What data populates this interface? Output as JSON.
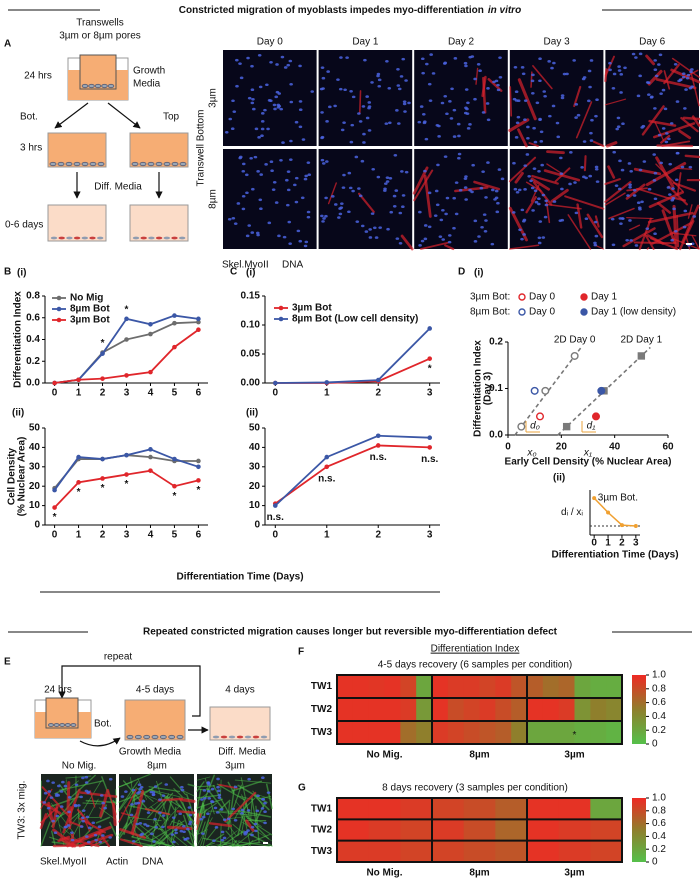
{
  "figure": {
    "title": "Constricted migration of myoblasts impedes myo-differentiation",
    "title_italic": "in vitro",
    "title2": "Repeated constricted migration causes longer but reversible myo-differentiation defect",
    "shared_xlabel": "Differentiation Time (Days)"
  },
  "panel_A": {
    "label": "A",
    "schematic": {
      "transwells": "Transwells",
      "pores": "3µm or 8µm pores",
      "t1": "24 hrs",
      "growth": "Growth",
      "media": "Media",
      "bot": "Bot.",
      "top": "Top",
      "t2": "3 hrs",
      "diff": "Diff. Media",
      "t3": "0-6 days"
    },
    "row_title": "Transwell Bottom",
    "rows": [
      "3µm",
      "8µm"
    ],
    "columns": [
      "Day 0",
      "Day 1",
      "Day 2",
      "Day 3",
      "Day 6"
    ],
    "stain_red": "Skel.MyoII",
    "stain_blue": "DNA"
  },
  "panel_E": {
    "label": "E",
    "repeat": "repeat",
    "t1": "24 hrs",
    "t2": "4-5 days",
    "t3": "4 days",
    "bot": "Bot.",
    "growth": "Growth Media",
    "diff": "Diff. Media",
    "columns": [
      "No Mig.",
      "8µm",
      "3µm"
    ],
    "row_label": "TW3: 3x mig.",
    "stain_red": "Skel.MyoII",
    "stain_green": "Actin",
    "stain_blue": "DNA"
  },
  "chart_data": [
    {
      "type": "line",
      "panel": "B",
      "sublabel": "(i)",
      "ylabel": "Differentiation Index",
      "x": [
        0,
        1,
        2,
        3,
        4,
        5,
        6
      ],
      "xlim": [
        -0.4,
        6.4
      ],
      "xticks": [
        0,
        1,
        2,
        3,
        4,
        5,
        6
      ],
      "ylim": [
        0,
        0.8
      ],
      "yticks": [
        {
          "value": 0,
          "label": "0.0"
        },
        0.2,
        0.4,
        0.6,
        0.8
      ],
      "legend": true,
      "series": [
        {
          "name": "No Mig",
          "color": "#6d6d6d",
          "values": [
            0,
            0.03,
            0.28,
            0.4,
            0.45,
            0.55,
            0.56
          ]
        },
        {
          "name": "8µm Bot",
          "color": "#3b57a6",
          "values": [
            0,
            0.03,
            0.27,
            0.59,
            0.54,
            0.62,
            0.59
          ]
        },
        {
          "name": "3µm Bot",
          "color": "#e0262b",
          "values": [
            0,
            0.03,
            0.04,
            0.07,
            0.1,
            0.33,
            0.49
          ]
        }
      ],
      "significance": [
        null,
        null,
        "*",
        "*",
        null,
        null,
        null
      ]
    },
    {
      "type": "line",
      "sublabel": "(ii)",
      "ylabel": [
        "Cell Density",
        "(% Nuclear Area)"
      ],
      "x": [
        0,
        1,
        2,
        3,
        4,
        5,
        6
      ],
      "xlim": [
        -0.4,
        6.4
      ],
      "xticks": [
        0,
        1,
        2,
        3,
        4,
        5,
        6
      ],
      "ylim": [
        0,
        50
      ],
      "yticks": [
        0,
        10,
        20,
        30,
        40,
        50
      ],
      "legend": false,
      "series": [
        {
          "color": "#6d6d6d",
          "values": [
            19,
            34,
            34,
            36,
            35,
            33,
            33
          ]
        },
        {
          "color": "#3b57a6",
          "values": [
            18,
            35,
            34,
            36,
            39,
            34,
            30
          ]
        },
        {
          "color": "#e0262b",
          "values": [
            9,
            22,
            24,
            26,
            28,
            20,
            23
          ]
        }
      ],
      "significance": [
        "*",
        "*",
        "*",
        "*",
        null,
        "*",
        "*"
      ]
    },
    {
      "type": "line",
      "panel": "C",
      "sublabel": "(i)",
      "x": [
        0,
        1,
        2,
        3
      ],
      "xlim": [
        -0.2,
        3.2
      ],
      "xticks": [
        0,
        1,
        2,
        3
      ],
      "ylim": [
        0,
        0.15
      ],
      "yticks": [
        {
          "value": 0,
          "label": "0.00"
        },
        {
          "value": 0.05,
          "label": "0.05"
        },
        {
          "value": 0.1,
          "label": "0.10"
        },
        {
          "value": 0.15,
          "label": "0.15"
        }
      ],
      "legend": true,
      "series": [
        {
          "name": "3µm Bot",
          "color": "#e0262b",
          "values": [
            0,
            0,
            0.003,
            0.042
          ]
        },
        {
          "name": "8µm Bot (Low cell density)",
          "color": "#3b57a6",
          "values": [
            0,
            0.001,
            0.005,
            0.094
          ]
        }
      ],
      "significance": [
        null,
        null,
        null,
        "*"
      ]
    },
    {
      "type": "line",
      "sublabel": "(ii)",
      "x": [
        0,
        1,
        2,
        3
      ],
      "xlim": [
        -0.2,
        3.2
      ],
      "xticks": [
        0,
        1,
        2,
        3
      ],
      "ylim": [
        0,
        50
      ],
      "yticks": [
        0,
        10,
        20,
        30,
        40,
        50
      ],
      "legend": false,
      "series": [
        {
          "color": "#e0262b",
          "values": [
            11,
            30,
            41,
            40
          ]
        },
        {
          "color": "#3b57a6",
          "values": [
            10,
            35,
            46,
            45
          ]
        }
      ],
      "significance": [
        "n.s.",
        "n.s.",
        "n.s.",
        "n.s."
      ]
    },
    {
      "type": "scatter",
      "panel": "D",
      "sublabel": "(i)",
      "ylabel": [
        "Differentiation Index",
        "(Day 3)"
      ],
      "xlabel": "Early Cell Density (% Nuclear Area)",
      "xlim": [
        0,
        60
      ],
      "xticks": [
        0,
        20,
        40,
        60
      ],
      "ylim": [
        0,
        0.2
      ],
      "yticks": [
        {
          "value": 0,
          "label": "0.0"
        },
        0.1,
        0.2
      ],
      "legend_groups": [
        {
          "label": "3µm Bot:",
          "series": [
            {
              "name": "Day 0",
              "color": "#e0262b",
              "filled": false,
              "x": [
                12
              ],
              "values": [
                0.04
              ]
            },
            {
              "name": "Day 1",
              "color": "#e0262b",
              "filled": true,
              "x": [
                33
              ],
              "values": [
                0.04
              ]
            }
          ]
        },
        {
          "label": "8µm Bot:",
          "series": [
            {
              "name": "Day 0",
              "color": "#3b57a6",
              "filled": false,
              "x": [
                10
              ],
              "values": [
                0.095
              ]
            },
            {
              "name": "Day 1 (low density)",
              "color": "#3b57a6",
              "filled": true,
              "x": [
                35
              ],
              "values": [
                0.095
              ]
            }
          ]
        }
      ],
      "reference_series": [
        {
          "name": "2D Day 0",
          "color": "#7a7a7a",
          "filled": false,
          "x": [
            5,
            14,
            25
          ],
          "values": [
            0.018,
            0.095,
            0.17
          ]
        },
        {
          "name": "2D Day 1",
          "color": "#7a7a7a",
          "filled": true,
          "x": [
            22,
            36,
            50
          ],
          "values": [
            0.018,
            0.095,
            0.17
          ]
        }
      ],
      "offset_labels": {
        "d0": "d₀",
        "x0": "x₀",
        "d1": "d₁",
        "x1": "x₁"
      }
    },
    {
      "type": "line",
      "sublabel": "(ii)",
      "ylabel": "dᵢ / xᵢ",
      "xlabel": "Differentiation Time (Days)",
      "annotation": "3µm Bot.",
      "x": [
        0,
        1,
        2,
        3
      ],
      "xlim": [
        -0.3,
        3.3
      ],
      "xticks": [
        0,
        1,
        2,
        3
      ],
      "ylim": [
        -0.2,
        0.8
      ],
      "reference_line": 0,
      "legend": false,
      "series": [
        {
          "color": "#f0a030",
          "values": [
            0.62,
            0.3,
            0.02,
            0
          ]
        }
      ]
    },
    {
      "type": "heatmap",
      "panel": "F",
      "title": "Differentiation Index",
      "subtitle": "4-5 days recovery (6 samples per condition)",
      "rows": [
        "TW1",
        "TW2",
        "TW3"
      ],
      "groups": [
        "No Mig.",
        "8µm",
        "3µm"
      ],
      "values": [
        [
          0.95,
          0.95,
          0.93,
          0.95,
          0.85,
          0.2,
          0.95,
          0.9,
          0.9,
          0.85,
          0.9,
          0.75,
          0.7,
          0.6,
          0.65,
          0.2,
          0.15,
          0.15
        ],
        [
          0.95,
          0.95,
          0.95,
          0.95,
          0.9,
          0.3,
          0.95,
          0.8,
          0.85,
          0.9,
          0.8,
          0.7,
          0.95,
          0.95,
          0.9,
          0.35,
          0.5,
          0.45
        ],
        [
          0.95,
          0.95,
          0.95,
          0.95,
          0.6,
          0.5,
          0.9,
          0.85,
          0.8,
          0.75,
          0.7,
          0.5,
          0.2,
          0.2,
          0.2,
          0.15,
          0.15,
          0.1
        ]
      ],
      "significance": [
        [
          null,
          null,
          null
        ],
        [
          null,
          null,
          null
        ],
        [
          null,
          null,
          "*"
        ]
      ],
      "zlim": [
        0,
        1
      ],
      "zticks": [
        0,
        0.2,
        0.4,
        0.6,
        0.8,
        {
          "value": 1,
          "label": "1.0"
        }
      ],
      "colormap": [
        "#55c04a",
        "#8f7f2c",
        "#ee2a24"
      ]
    },
    {
      "type": "heatmap",
      "panel": "G",
      "subtitle": "8 days recovery (3 samples per condition)",
      "rows": [
        "TW1",
        "TW2",
        "TW3"
      ],
      "groups": [
        "No Mig.",
        "8µm",
        "3µm"
      ],
      "values": [
        [
          0.95,
          0.95,
          0.9,
          0.85,
          0.8,
          0.7,
          0.95,
          0.95,
          0.2
        ],
        [
          0.95,
          0.9,
          0.85,
          0.9,
          0.8,
          0.65,
          0.95,
          0.9,
          0.85
        ],
        [
          0.9,
          0.9,
          0.85,
          0.85,
          0.8,
          0.75,
          0.95,
          0.9,
          0.85
        ]
      ],
      "zlim": [
        0,
        1
      ],
      "zticks": [
        0,
        0.2,
        0.4,
        0.6,
        0.8,
        {
          "value": 1,
          "label": "1.0"
        }
      ],
      "colormap": [
        "#55c04a",
        "#8f7f2c",
        "#ee2a24"
      ]
    }
  ]
}
